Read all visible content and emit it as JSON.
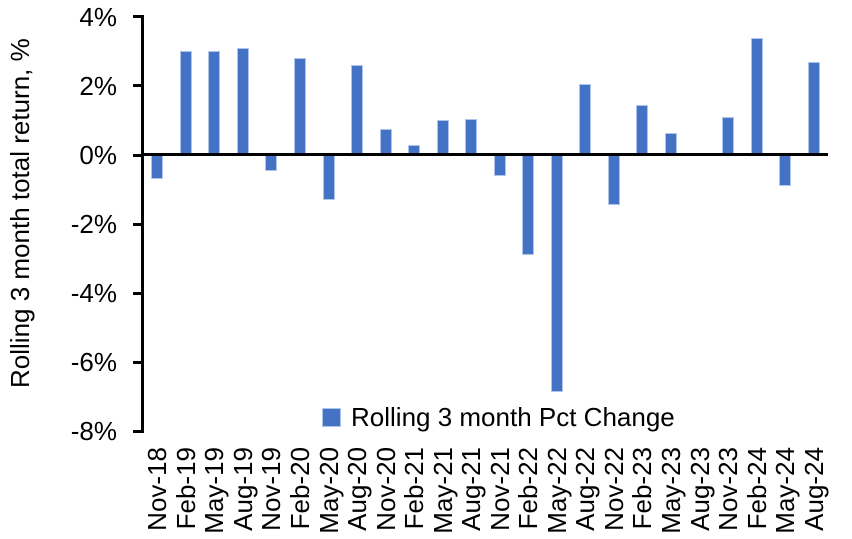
{
  "chart_data": {
    "type": "bar",
    "title": "",
    "categories": [
      "Nov-18",
      "Feb-19",
      "May-19",
      "Aug-19",
      "Nov-19",
      "Feb-20",
      "May-20",
      "Aug-20",
      "Nov-20",
      "Feb-21",
      "May-21",
      "Aug-21",
      "Nov-21",
      "Feb-22",
      "May-22",
      "Aug-22",
      "Nov-22",
      "Feb-23",
      "May-23",
      "Aug-23",
      "Nov-23",
      "Feb-24",
      "May-24",
      "Aug-24"
    ],
    "series": [
      {
        "name": "Rolling 3 month Pct Change",
        "values": [
          -0.7,
          3.0,
          3.0,
          3.1,
          -0.45,
          2.8,
          -1.3,
          2.6,
          0.75,
          0.3,
          1.0,
          1.05,
          -0.6,
          -2.9,
          -6.85,
          2.05,
          -1.45,
          1.45,
          0.65,
          0.0,
          1.1,
          3.4,
          -0.9,
          2.7
        ]
      }
    ],
    "xlabel": "",
    "ylabel": "Rolling 3 month total return, %",
    "ylim": [
      -8,
      4
    ],
    "y_ticks": [
      {
        "label": "4%",
        "value": 4
      },
      {
        "label": "2%",
        "value": 2
      },
      {
        "label": "0%",
        "value": 0
      },
      {
        "label": "-2%",
        "value": -2
      },
      {
        "label": "-4%",
        "value": -4
      },
      {
        "label": "-6%",
        "value": -6
      },
      {
        "label": "-8%",
        "value": -8
      }
    ],
    "grid": false,
    "legend_position": "bottom-center",
    "colors": {
      "bar_fill": "#4472C4",
      "bar_edge": "#AEC6EC",
      "axis": "#000000",
      "text": "#000000"
    }
  }
}
